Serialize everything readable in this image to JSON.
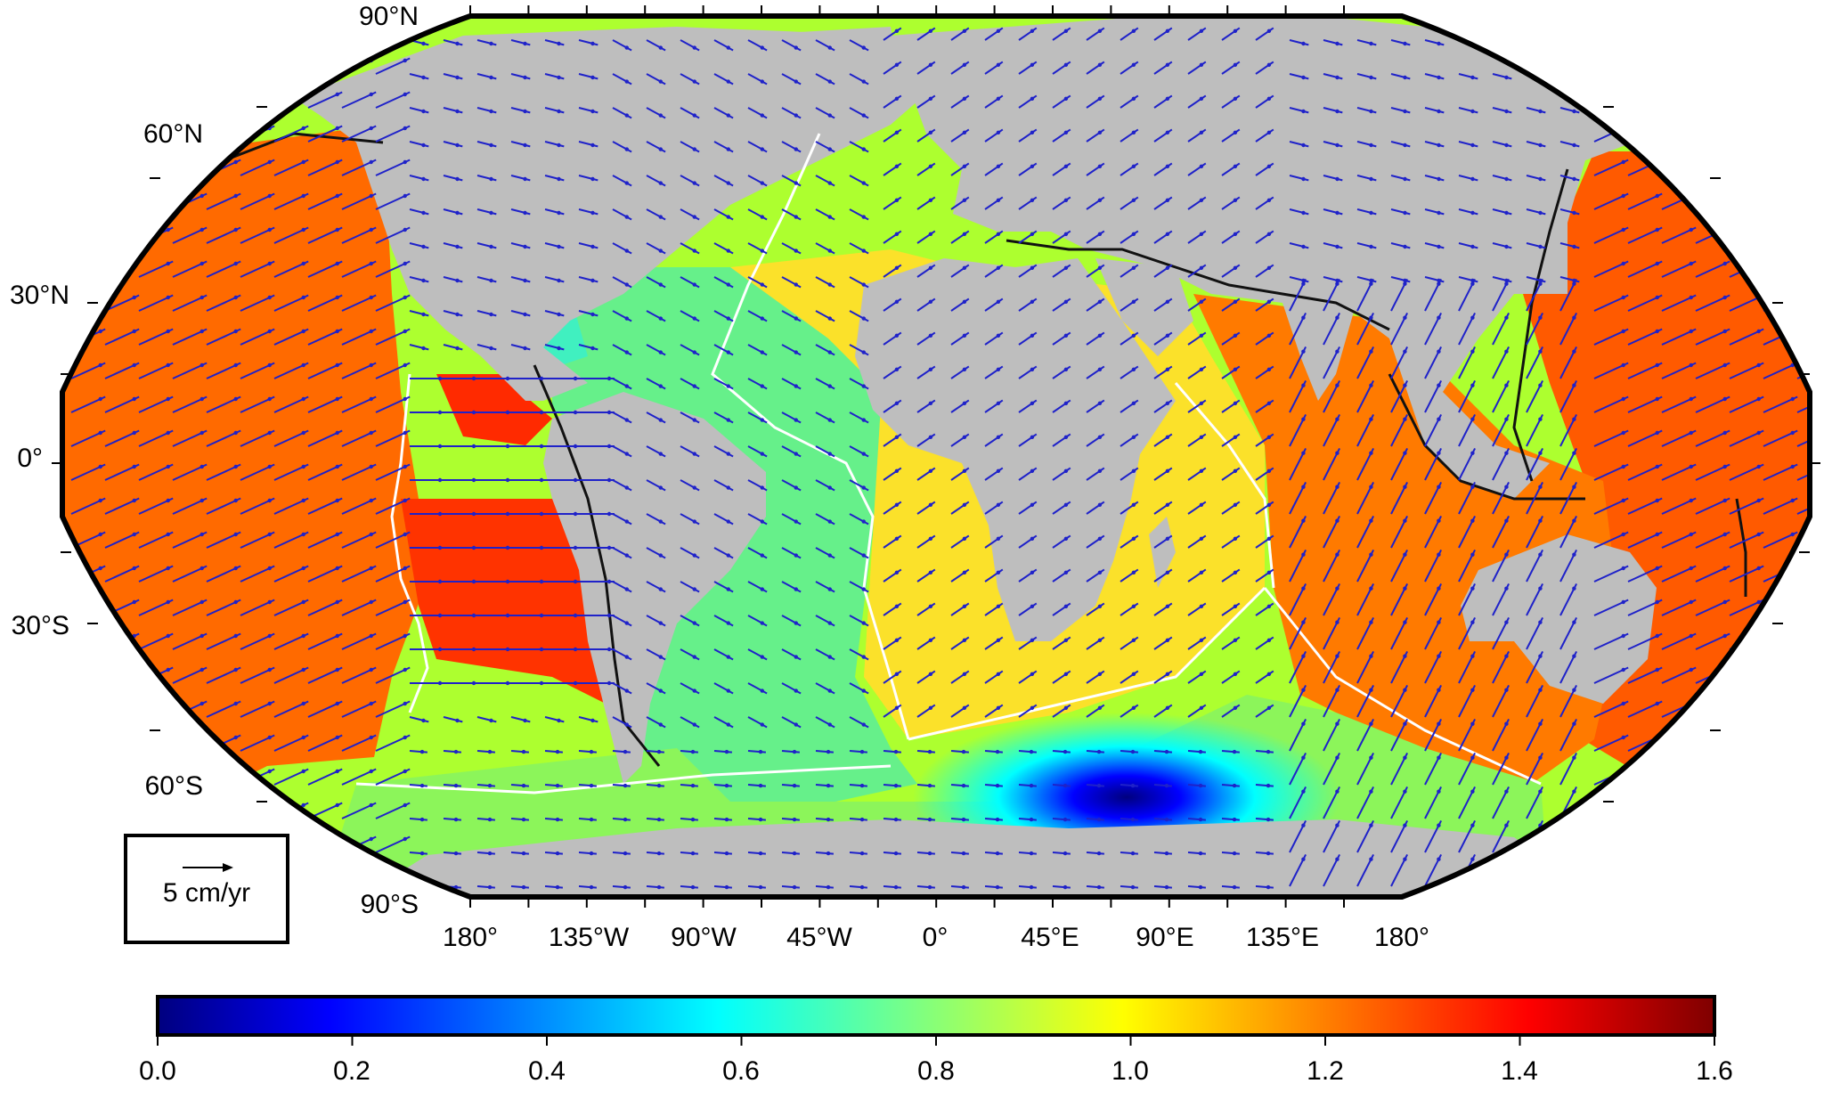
{
  "map": {
    "projection": "robinson",
    "ocean_palette": "jet",
    "land_color": "#bebebe",
    "vector_color": "#1f22c9",
    "ridge_color": "#ffffff",
    "trench_color": "#111111",
    "lat_labels": [
      "90°N",
      "60°N",
      "30°N",
      "0°",
      "30°S",
      "60°S",
      "90°S"
    ],
    "lon_labels": [
      "180°",
      "135°W",
      "90°W",
      "45°W",
      "0°",
      "45°E",
      "90°E",
      "135°E",
      "180°"
    ]
  },
  "legend": {
    "scale_text": "5 cm/yr"
  },
  "colorbar": {
    "palette": "jet",
    "range": [
      0.0,
      1.6
    ],
    "tick_labels": [
      "0.0",
      "0.2",
      "0.4",
      "0.6",
      "0.8",
      "1.0",
      "1.2",
      "1.4",
      "1.6"
    ]
  }
}
